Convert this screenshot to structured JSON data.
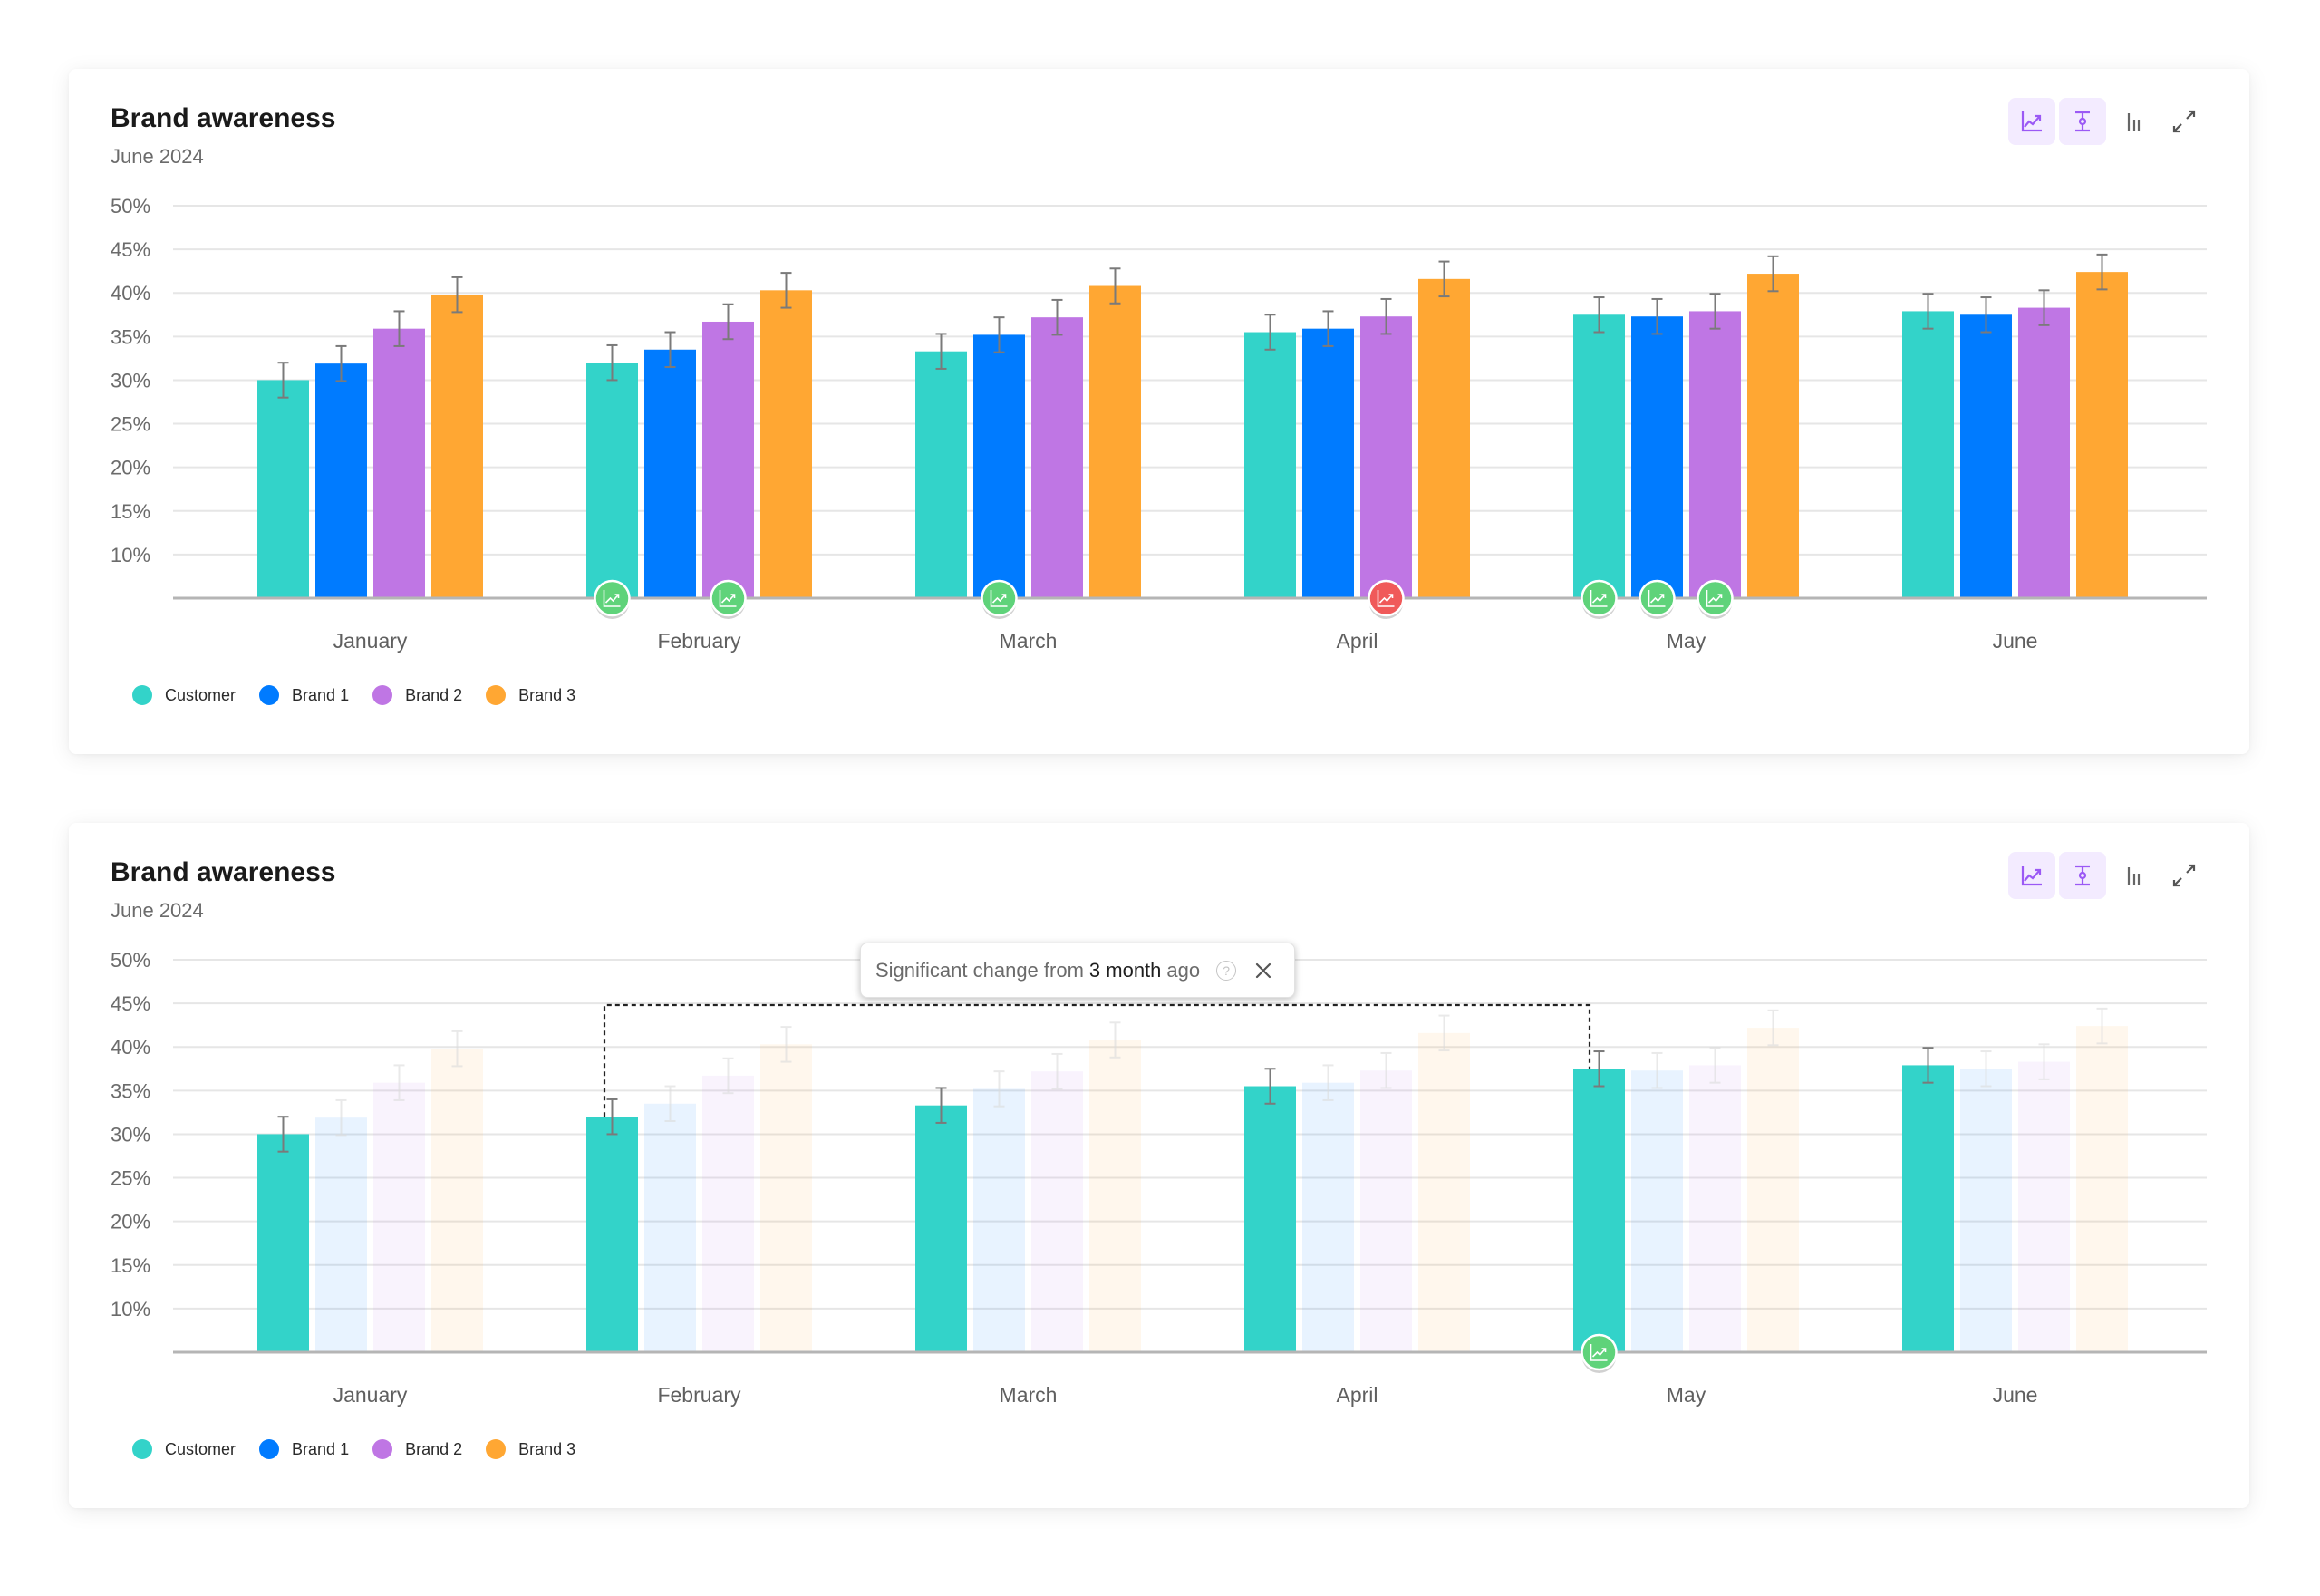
{
  "cards": [
    {
      "title": "Brand awareness",
      "subtitle": "June 2024",
      "toolbar": [
        {
          "name": "trend-toggle-button",
          "icon": "trend-chart-icon",
          "active": true
        },
        {
          "name": "error-bars-toggle-button",
          "icon": "error-bar-icon",
          "active": true
        },
        {
          "name": "bar-chart-button",
          "icon": "bar-chart-icon",
          "active": false
        },
        {
          "name": "expand-button",
          "icon": "expand-icon",
          "active": false
        }
      ],
      "focus_series": null,
      "tooltip": null
    },
    {
      "title": "Brand awareness",
      "subtitle": "June 2024",
      "toolbar": [
        {
          "name": "trend-toggle-button",
          "icon": "trend-chart-icon",
          "active": true
        },
        {
          "name": "error-bars-toggle-button",
          "icon": "error-bar-icon",
          "active": true
        },
        {
          "name": "bar-chart-button",
          "icon": "bar-chart-icon",
          "active": false
        },
        {
          "name": "expand-button",
          "icon": "expand-icon",
          "active": false
        }
      ],
      "focus_series": "Customer",
      "tooltip": {
        "prefix": "Significant change from",
        "highlight": "3 month",
        "suffix": "ago",
        "help_icon": "?",
        "from_month": "February",
        "to_month": "May"
      }
    }
  ],
  "colors": {
    "Customer": "#33d3c9",
    "Brand 1": "#007bff",
    "Brand 2": "#bf76e4",
    "Brand 3": "#ffa733",
    "significant_up": "#5fd37a",
    "significant_down": "#f05a5a",
    "accent": "#9b59f5"
  },
  "chart_data": {
    "type": "bar",
    "title": "Brand awareness",
    "subtitle": "June 2024",
    "xlabel": "",
    "ylabel": "",
    "categories": [
      "January",
      "February",
      "March",
      "April",
      "May",
      "June"
    ],
    "yticks": [
      "50%",
      "45%",
      "40%",
      "35%",
      "30%",
      "25%",
      "20%",
      "15%",
      "10%"
    ],
    "ylim": [
      5,
      50
    ],
    "grid": true,
    "legend_position": "bottom-left",
    "error_margin": 2,
    "series": [
      {
        "name": "Customer",
        "values": [
          30,
          32,
          33.3,
          35.5,
          37.5,
          37.9
        ]
      },
      {
        "name": "Brand 1",
        "values": [
          31.9,
          33.5,
          35.2,
          35.9,
          37.3,
          37.5
        ]
      },
      {
        "name": "Brand 2",
        "values": [
          35.9,
          36.7,
          37.2,
          37.3,
          37.9,
          38.3
        ]
      },
      {
        "name": "Brand 3",
        "values": [
          39.8,
          40.3,
          40.8,
          41.6,
          42.2,
          42.4
        ]
      }
    ],
    "significance_markers_chart1": [
      {
        "category": "February",
        "series": "Customer",
        "direction": "up"
      },
      {
        "category": "February",
        "series": "Brand 2",
        "direction": "up"
      },
      {
        "category": "March",
        "series": "Brand 1",
        "direction": "up"
      },
      {
        "category": "April",
        "series": "Brand 2",
        "direction": "down"
      },
      {
        "category": "May",
        "series": "Customer",
        "direction": "up"
      },
      {
        "category": "May",
        "series": "Brand 1",
        "direction": "up"
      },
      {
        "category": "May",
        "series": "Brand 2",
        "direction": "up"
      }
    ],
    "significance_markers_chart2": [
      {
        "category": "May",
        "series": "Customer",
        "direction": "up"
      }
    ]
  },
  "legend": [
    "Customer",
    "Brand 1",
    "Brand 2",
    "Brand 3"
  ]
}
